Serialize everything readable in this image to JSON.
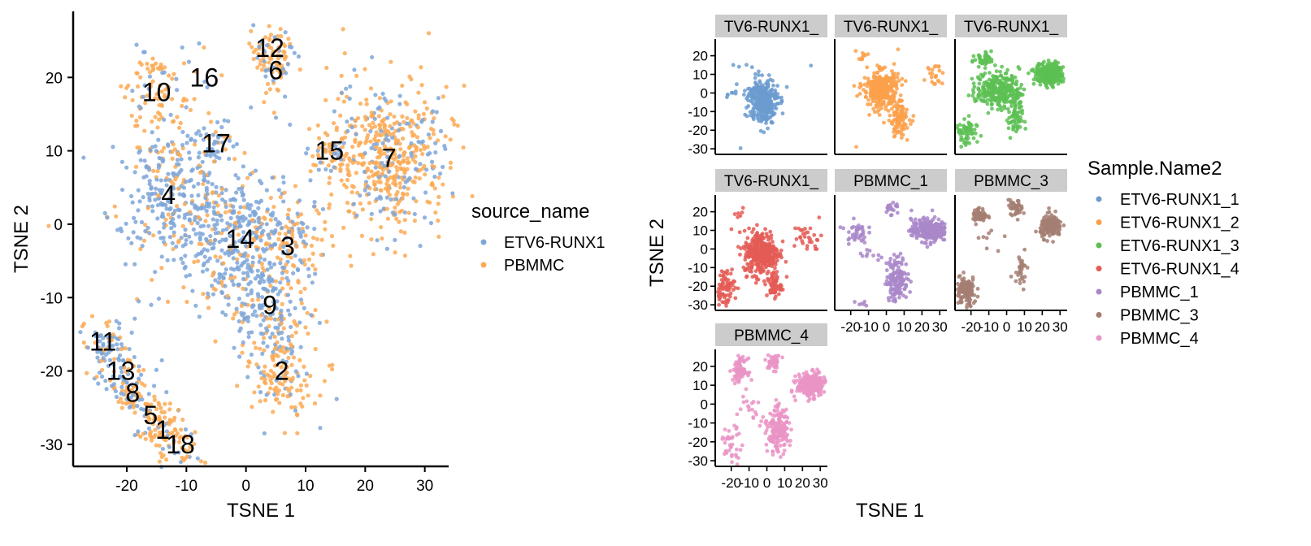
{
  "chart_data": [
    {
      "type": "scatter",
      "xlabel": "TSNE 1",
      "ylabel": "TSNE 2",
      "xlim": [
        -29,
        34
      ],
      "ylim": [
        -33,
        29
      ],
      "xticks": [
        -20,
        -10,
        0,
        10,
        20,
        30
      ],
      "yticks": [
        -30,
        -20,
        -10,
        0,
        10,
        20
      ],
      "legend": {
        "title": "source_name",
        "position": "right",
        "entries": [
          {
            "name": "ETV6-RUNX1",
            "color": "#7ea6d8"
          },
          {
            "name": "PBMMC",
            "color": "#fbaa55"
          }
        ]
      },
      "clusters": [
        {
          "label": "1",
          "x": -14,
          "y": -28,
          "color": "#fbaa55",
          "n": 50
        },
        {
          "label": "2",
          "x": 6,
          "y": -20,
          "color": "#fbaa55",
          "n": 160
        },
        {
          "label": "3",
          "x": 7,
          "y": -3,
          "color": "#fbaa55",
          "n": 90
        },
        {
          "label": "4",
          "x": -13,
          "y": 4,
          "color": "#7ea6d8",
          "n": 320
        },
        {
          "label": "5",
          "x": -16,
          "y": -26,
          "color": "#fbaa55",
          "n": 50
        },
        {
          "label": "6",
          "x": 5,
          "y": 21,
          "color": "#fbaa55",
          "n": 50
        },
        {
          "label": "7",
          "x": 24,
          "y": 9,
          "color": "#fbaa55",
          "n": 520
        },
        {
          "label": "8",
          "x": -19,
          "y": -23,
          "color": "#fbaa55",
          "n": 50
        },
        {
          "label": "9",
          "x": 4,
          "y": -11,
          "color": "#7ea6d8",
          "n": 140
        },
        {
          "label": "10",
          "x": -15,
          "y": 18,
          "color": "#fbaa55",
          "n": 90
        },
        {
          "label": "11",
          "x": -24,
          "y": -16,
          "color": "#7ea6d8",
          "n": 60
        },
        {
          "label": "12",
          "x": 4,
          "y": 24,
          "color": "#fbaa55",
          "n": 50
        },
        {
          "label": "13",
          "x": -21,
          "y": -20,
          "color": "#7ea6d8",
          "n": 50
        },
        {
          "label": "14",
          "x": -1,
          "y": -2,
          "color": "#7ea6d8",
          "n": 380
        },
        {
          "label": "15",
          "x": 14,
          "y": 10,
          "color": "#fbaa55",
          "n": 50
        },
        {
          "label": "16",
          "x": -7,
          "y": 20,
          "color": "#fbaa55",
          "n": 6
        },
        {
          "label": "17",
          "x": -5,
          "y": 11,
          "color": "#7ea6d8",
          "n": 40
        },
        {
          "label": "18",
          "x": -11,
          "y": -30,
          "color": "#fbaa55",
          "n": 30
        }
      ]
    },
    {
      "type": "scatter",
      "xlabel": "TSNE 1",
      "ylabel": "TSNE 2",
      "xlim": [
        -29,
        34
      ],
      "ylim": [
        -33,
        29
      ],
      "xticks": [
        -20,
        -10,
        0,
        10,
        20,
        30
      ],
      "xtick_labels": [
        "-20",
        "-10",
        "0",
        "10",
        "20",
        "30"
      ],
      "yticks": [
        -30,
        -20,
        -10,
        0,
        10,
        20
      ],
      "legend": {
        "title": "Sample.Name2",
        "position": "right",
        "entries": [
          {
            "name": "ETV6-RUNX1_1",
            "color": "#6b9bcf"
          },
          {
            "name": "ETV6-RUNX1_2",
            "color": "#fba04a"
          },
          {
            "name": "ETV6-RUNX1_3",
            "color": "#5cbf52"
          },
          {
            "name": "ETV6-RUNX1_4",
            "color": "#e45a55"
          },
          {
            "name": "PBMMC_1",
            "color": "#a987c9"
          },
          {
            "name": "PBMMC_3",
            "color": "#a57e72"
          },
          {
            "name": "PBMMC_4",
            "color": "#ea94c6"
          }
        ]
      },
      "facets": [
        {
          "strip": "TV6-RUNX1_",
          "sample": "ETV6-RUNX1_1",
          "color": "#6b9bcf",
          "clusters": [
            {
              "x": -2,
              "y": -4,
              "n": 320,
              "sx": 4,
              "sy": 6
            },
            {
              "x": -18,
              "y": 0,
              "n": 12,
              "sx": 4,
              "sy": 2
            },
            {
              "x": -15,
              "y": 16,
              "n": 2,
              "sx": 2,
              "sy": 2
            },
            {
              "x": 25,
              "y": 15,
              "n": 1,
              "sx": 1,
              "sy": 1
            },
            {
              "x": -13,
              "y": -29,
              "n": 1,
              "sx": 1,
              "sy": 1
            }
          ]
        },
        {
          "strip": "TV6-RUNX1_",
          "sample": "ETV6-RUNX1_2",
          "color": "#fba04a",
          "clusters": [
            {
              "x": -3,
              "y": 2,
              "n": 300,
              "sx": 5,
              "sy": 5
            },
            {
              "x": 7,
              "y": -14,
              "n": 100,
              "sx": 3,
              "sy": 5
            },
            {
              "x": -13,
              "y": 18,
              "n": 10,
              "sx": 2,
              "sy": 2
            },
            {
              "x": 26,
              "y": 9,
              "n": 22,
              "sx": 3,
              "sy": 3
            },
            {
              "x": -17,
              "y": -27,
              "n": 1,
              "sx": 1,
              "sy": 1
            }
          ]
        },
        {
          "strip": "TV6-RUNX1_",
          "sample": "ETV6-RUNX1_3",
          "color": "#5cbf52",
          "clusters": [
            {
              "x": -5,
              "y": 2,
              "n": 260,
              "sx": 6,
              "sy": 5
            },
            {
              "x": 24,
              "y": 10,
              "n": 260,
              "sx": 4,
              "sy": 3
            },
            {
              "x": -13,
              "y": 18,
              "n": 40,
              "sx": 3,
              "sy": 2
            },
            {
              "x": -23,
              "y": -22,
              "n": 60,
              "sx": 3,
              "sy": 4
            },
            {
              "x": 5,
              "y": -13,
              "n": 70,
              "sx": 2,
              "sy": 6
            }
          ]
        },
        {
          "strip": "TV6-RUNX1_",
          "sample": "ETV6-RUNX1_4",
          "color": "#e45a55",
          "clusters": [
            {
              "x": -3,
              "y": -2,
              "n": 350,
              "sx": 5,
              "sy": 6
            },
            {
              "x": -24,
              "y": -21,
              "n": 80,
              "sx": 3,
              "sy": 5
            },
            {
              "x": 23,
              "y": 6,
              "n": 30,
              "sx": 4,
              "sy": 4
            },
            {
              "x": -14,
              "y": 19,
              "n": 6,
              "sx": 2,
              "sy": 2
            },
            {
              "x": 4,
              "y": -20,
              "n": 60,
              "sx": 2,
              "sy": 3
            }
          ]
        },
        {
          "strip": "PBMMC_1",
          "sample": "PBMMC_1",
          "color": "#a987c9",
          "clusters": [
            {
              "x": 24,
              "y": 10,
              "n": 300,
              "sx": 5,
              "sy": 3
            },
            {
              "x": 6,
              "y": -16,
              "n": 150,
              "sx": 3,
              "sy": 6
            },
            {
              "x": -17,
              "y": 9,
              "n": 40,
              "sx": 3,
              "sy": 3
            },
            {
              "x": 3,
              "y": 22,
              "n": 20,
              "sx": 2,
              "sy": 2
            },
            {
              "x": -10,
              "y": -4,
              "n": 10,
              "sx": 5,
              "sy": 3
            },
            {
              "x": -13,
              "y": -29,
              "n": 6,
              "sx": 2,
              "sy": 1
            }
          ]
        },
        {
          "strip": "PBMMC_3",
          "sample": "PBMMC_3",
          "color": "#a57e72",
          "clusters": [
            {
              "x": -15,
              "y": 18,
              "n": 50,
              "sx": 2,
              "sy": 2
            },
            {
              "x": 5,
              "y": 22,
              "n": 40,
              "sx": 2,
              "sy": 2
            },
            {
              "x": 25,
              "y": 12,
              "n": 150,
              "sx": 3,
              "sy": 3
            },
            {
              "x": -23,
              "y": -23,
              "n": 120,
              "sx": 3,
              "sy": 4
            },
            {
              "x": 8,
              "y": -8,
              "n": 30,
              "sx": 2,
              "sy": 6
            },
            {
              "x": -10,
              "y": 5,
              "n": 8,
              "sx": 3,
              "sy": 3
            }
          ]
        },
        {
          "strip": "PBMMC_4",
          "sample": "PBMMC_4",
          "color": "#ea94c6",
          "clusters": [
            {
              "x": -15,
              "y": 18,
              "n": 80,
              "sx": 2,
              "sy": 3
            },
            {
              "x": 4,
              "y": 22,
              "n": 40,
              "sx": 2,
              "sy": 2
            },
            {
              "x": 25,
              "y": 10,
              "n": 300,
              "sx": 4,
              "sy": 3
            },
            {
              "x": 6,
              "y": -16,
              "n": 150,
              "sx": 3,
              "sy": 5
            },
            {
              "x": -20,
              "y": -22,
              "n": 40,
              "sx": 3,
              "sy": 5
            },
            {
              "x": -8,
              "y": 0,
              "n": 20,
              "sx": 5,
              "sy": 5
            },
            {
              "x": 7,
              "y": -3,
              "n": 20,
              "sx": 2,
              "sy": 3
            }
          ]
        }
      ]
    }
  ]
}
